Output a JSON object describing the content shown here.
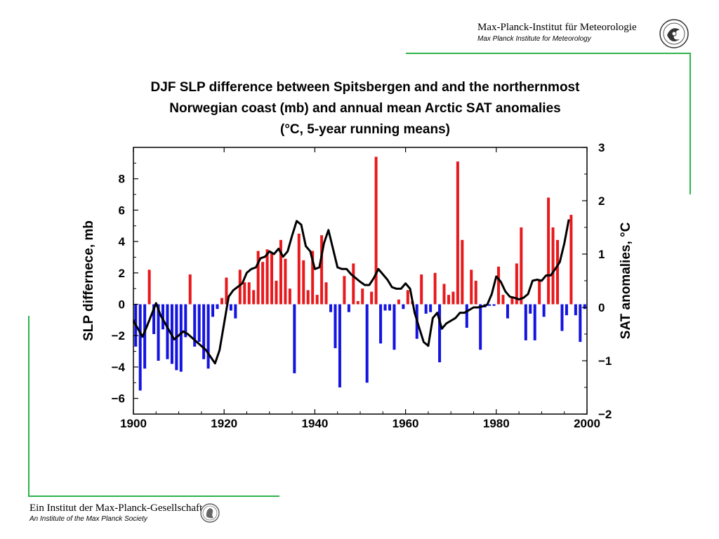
{
  "header": {
    "institute_de": "Max-Planck-Institut für Meteorologie",
    "institute_en": "Max Planck Institute for Meteorology"
  },
  "footer": {
    "society_de": "Ein Institut der Max-Planck-Gesellschaft",
    "society_en": "An Institute of the Max Planck Society"
  },
  "colors": {
    "positive_bar": "#e8191c",
    "negative_bar": "#1414e0",
    "line": "#000000",
    "accent_green": "#2db34a"
  },
  "chart_data": {
    "type": "bar",
    "title_lines": [
      "DJF SLP difference between Spitsbergen and and the northernmost",
      "Norwegian coast (mb) and annual mean Arctic SAT anomalies",
      "(°C, 5-year running means)"
    ],
    "xlabel": "",
    "ylabel": "SLP differnece, mb",
    "y2label": "SAT anomalies, °C",
    "xlim": [
      1900,
      2000
    ],
    "ylim": [
      -7,
      10
    ],
    "y2lim": [
      -2,
      3
    ],
    "x_ticks": [
      "1900",
      "1920",
      "1940",
      "1960",
      "1980",
      "2000"
    ],
    "y_ticks": [
      "8",
      "6",
      "4",
      "2",
      "0",
      "−2",
      "−4",
      "−6"
    ],
    "y_tick_values": [
      8,
      6,
      4,
      2,
      0,
      -2,
      -4,
      -6
    ],
    "y2_ticks": [
      "3",
      "2",
      "1",
      "0",
      "−1",
      "−2"
    ],
    "y2_tick_values": [
      3,
      2,
      1,
      0,
      -1,
      -2
    ],
    "grid": false,
    "series": [
      {
        "kind": "bar",
        "x": [
          1900,
          1901,
          1902,
          1903,
          1904,
          1905,
          1906,
          1907,
          1908,
          1909,
          1910,
          1911,
          1912,
          1913,
          1914,
          1915,
          1916,
          1917,
          1918,
          1919,
          1920,
          1921,
          1922,
          1923,
          1924,
          1925,
          1926,
          1927,
          1928,
          1929,
          1930,
          1931,
          1932,
          1933,
          1934,
          1935,
          1936,
          1937,
          1938,
          1939,
          1940,
          1941,
          1942,
          1943,
          1944,
          1945,
          1946,
          1947,
          1948,
          1949,
          1950,
          1951,
          1952,
          1953,
          1954,
          1955,
          1956,
          1957,
          1958,
          1959,
          1960,
          1961,
          1962,
          1963,
          1964,
          1965,
          1966,
          1967,
          1968,
          1969,
          1970,
          1971,
          1972,
          1973,
          1974,
          1975,
          1976,
          1977,
          1978,
          1979,
          1980,
          1981,
          1982,
          1983,
          1984,
          1985,
          1986,
          1987,
          1988,
          1989,
          1990,
          1991,
          1992,
          1993,
          1994,
          1995,
          1996,
          1997,
          1998,
          1999
        ],
        "values": [
          -2.7,
          -5.5,
          -4.1,
          2.2,
          -1.9,
          -3.6,
          -1.6,
          -3.5,
          -3.8,
          -4.2,
          -4.3,
          -2.1,
          1.9,
          -2.7,
          -2.4,
          -3.5,
          -4.1,
          -0.8,
          -0.3,
          0.4,
          1.7,
          -0.4,
          -0.9,
          2.2,
          1.4,
          1.4,
          0.9,
          3.4,
          2.7,
          3.5,
          3.3,
          1.5,
          4.1,
          2.9,
          1.0,
          -4.4,
          4.5,
          2.8,
          0.9,
          3.4,
          0.6,
          4.4,
          1.4,
          -0.5,
          -2.8,
          -5.3,
          1.8,
          -0.5,
          2.6,
          0.2,
          1.0,
          -5.0,
          0.8,
          9.4,
          -2.5,
          -0.4,
          -0.4,
          -2.9,
          0.3,
          -0.3,
          0.9,
          0.2,
          -2.2,
          1.9,
          -0.6,
          -0.5,
          2.0,
          -3.7,
          1.3,
          0.6,
          0.8,
          9.1,
          4.1,
          -1.5,
          2.2,
          1.5,
          -2.9,
          -0.2,
          -0.1,
          -0.1,
          2.4,
          0.6,
          -0.9,
          0.5,
          2.6,
          4.9,
          -2.3,
          -0.6,
          -2.3,
          1.5,
          -0.8,
          6.8,
          4.9,
          4.1,
          -1.7,
          -0.7,
          5.7,
          -0.7,
          -2.4,
          -0.3
        ]
      },
      {
        "kind": "line",
        "axis": "right",
        "x": [
          1900,
          1902,
          1903,
          1905,
          1906,
          1908,
          1909,
          1911,
          1912,
          1914,
          1916,
          1918,
          1919,
          1920,
          1921,
          1922,
          1924,
          1925,
          1926,
          1927,
          1928,
          1929,
          1930,
          1931,
          1932,
          1933,
          1934,
          1935,
          1936,
          1937,
          1938,
          1939,
          1940,
          1941,
          1942,
          1943,
          1944,
          1945,
          1946,
          1947,
          1948,
          1949,
          1950,
          1951,
          1952,
          1953,
          1954,
          1955,
          1956,
          1957,
          1958,
          1959,
          1960,
          1961,
          1962,
          1963,
          1964,
          1965,
          1966,
          1967,
          1968,
          1969,
          1970,
          1971,
          1972,
          1973,
          1974,
          1975,
          1976,
          1977,
          1978,
          1979,
          1980,
          1981,
          1982,
          1983,
          1984,
          1985,
          1986,
          1987,
          1988,
          1989,
          1990,
          1991,
          1992,
          1993,
          1994,
          1995,
          1996
        ],
        "values": [
          -0.25,
          -0.55,
          -0.35,
          0.08,
          -0.15,
          -0.45,
          -0.6,
          -0.45,
          -0.5,
          -0.65,
          -0.8,
          -1.05,
          -0.8,
          -0.3,
          0.2,
          0.32,
          0.45,
          0.65,
          0.72,
          0.75,
          0.92,
          0.95,
          1.05,
          1.0,
          1.1,
          0.95,
          1.05,
          1.35,
          1.62,
          1.55,
          1.15,
          1.05,
          0.72,
          0.75,
          1.2,
          1.45,
          1.1,
          0.75,
          0.72,
          0.72,
          0.62,
          0.55,
          0.48,
          0.42,
          0.42,
          0.55,
          0.72,
          0.62,
          0.52,
          0.38,
          0.35,
          0.35,
          0.45,
          0.35,
          -0.1,
          -0.38,
          -0.65,
          -0.72,
          -0.2,
          -0.1,
          -0.4,
          -0.3,
          -0.25,
          -0.2,
          -0.1,
          -0.1,
          -0.05,
          0.0,
          0.0,
          0.02,
          0.05,
          0.25,
          0.58,
          0.48,
          0.3,
          0.2,
          0.18,
          0.15,
          0.18,
          0.25,
          0.5,
          0.52,
          0.5,
          0.6,
          0.6,
          0.72,
          0.85,
          1.2,
          1.65
        ]
      }
    ]
  }
}
